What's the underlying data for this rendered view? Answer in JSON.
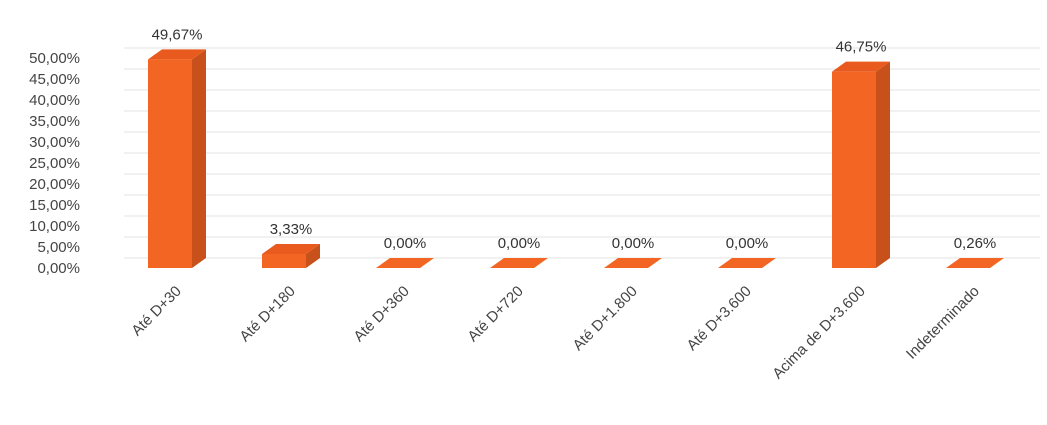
{
  "chart_data": {
    "type": "bar",
    "categories": [
      "Até D+30",
      "Até D+180",
      "Até D+360",
      "Até D+720",
      "Até D+1.800",
      "Até D+3.600",
      "Acima de D+3.600",
      "Indeterminado"
    ],
    "values": [
      49.67,
      3.33,
      0.0,
      0.0,
      0.0,
      0.0,
      46.75,
      0.26
    ],
    "data_labels": [
      "49,67%",
      "3,33%",
      "0,00%",
      "0,00%",
      "0,00%",
      "0,00%",
      "46,75%",
      "0,26%"
    ],
    "y_ticks": [
      "0,00%",
      "5,00%",
      "10,00%",
      "15,00%",
      "20,00%",
      "25,00%",
      "30,00%",
      "35,00%",
      "40,00%",
      "45,00%",
      "50,00%"
    ],
    "ylim": [
      0,
      50
    ],
    "grid": true,
    "legend": "none",
    "title": "",
    "xlabel": "",
    "ylabel": "",
    "colors": {
      "bar_front": "#F26522",
      "bar_side": "#C8501A",
      "bar_top": "#E85A1E"
    }
  }
}
